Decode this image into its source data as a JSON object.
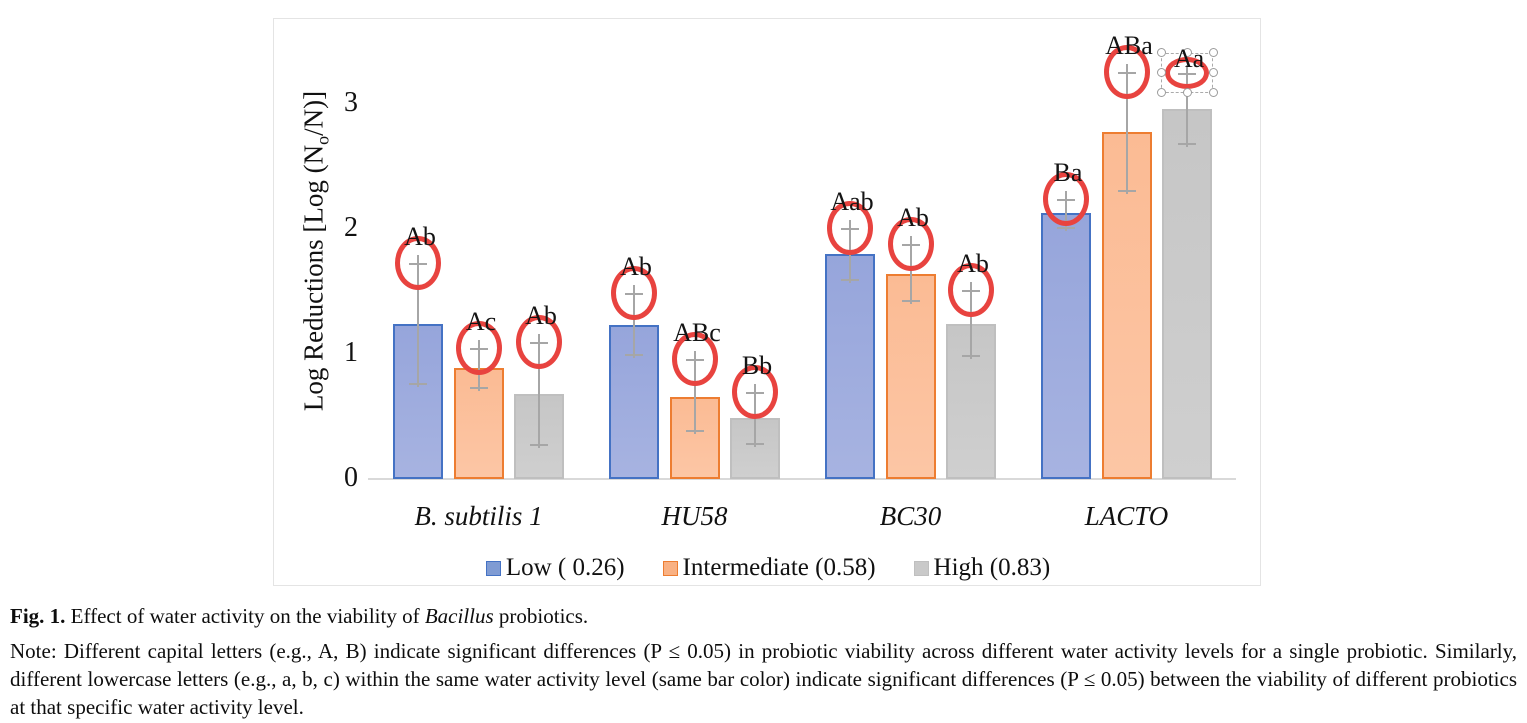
{
  "figure": {
    "caption": {
      "fig_label": "Fig. 1.",
      "text_before_italic": " Effect of water activity on the viability of ",
      "italic_word": "Bacillus",
      "text_after_italic": " probiotics."
    },
    "note": "Note: Different capital letters (e.g., A, B) indicate significant differences (P ≤ 0.05) in probiotic viability across different water activity levels for a single probiotic. Similarly, different lowercase letters (e.g., a, b, c) within the same water activity level (same bar color) indicate significant differences (P ≤ 0.05) between the viability of different probiotics at that specific water activity level."
  },
  "chart_data": {
    "type": "bar",
    "title": "",
    "ylabel": "Log Reductions [Log (No/N)]",
    "ylabel_parts": {
      "prefix": "Log Reductions [Log (N",
      "subscript": "o",
      "suffix": "/N)]"
    },
    "xlabel": "",
    "ylim": [
      0,
      3.5
    ],
    "yticks": [
      0,
      1,
      2,
      3
    ],
    "grid": false,
    "legend_position": "bottom",
    "categories": [
      "B. subtilis 1",
      "HU58",
      "BC30",
      "LACTO"
    ],
    "series": [
      {
        "name": "Low ( 0.26)",
        "fill": "#96a5db",
        "border": "#4472c4",
        "legend_fill": "#7f9bd3",
        "values": [
          1.24,
          1.23,
          1.8,
          2.13
        ],
        "err_low": [
          0.77,
          1.0,
          1.6,
          2.02
        ],
        "err_high": [
          1.73,
          1.49,
          2.01,
          2.24
        ],
        "letters": [
          "Ab",
          "Ab",
          "Aab",
          "Ba"
        ]
      },
      {
        "name": "Intermediate (0.58)",
        "fill": "#fbbb94",
        "border": "#ed7d31",
        "legend_fill": "#f9b183",
        "values": [
          0.89,
          0.66,
          1.64,
          2.78
        ],
        "err_low": [
          0.74,
          0.39,
          1.43,
          2.31
        ],
        "err_high": [
          1.05,
          0.96,
          1.88,
          3.26
        ],
        "letters": [
          "Ac",
          "ABc",
          "Ab",
          "ABa"
        ]
      },
      {
        "name": "High (0.83)",
        "fill": "#c6c6c6",
        "border": "#bfbfbf",
        "legend_fill": "#c9c9c9",
        "values": [
          0.68,
          0.49,
          1.24,
          2.96
        ],
        "err_low": [
          0.28,
          0.29,
          0.99,
          2.69
        ],
        "err_high": [
          1.1,
          0.7,
          1.51,
          3.25
        ],
        "letters": [
          "Ab",
          "Bb",
          "Ab",
          "Aa"
        ]
      }
    ],
    "annotations": {
      "description": "hand-drawn red circle around the top of every error bar",
      "circle_color": "#e8433f",
      "selected": {
        "category_index": 3,
        "series_index": 2
      }
    }
  }
}
